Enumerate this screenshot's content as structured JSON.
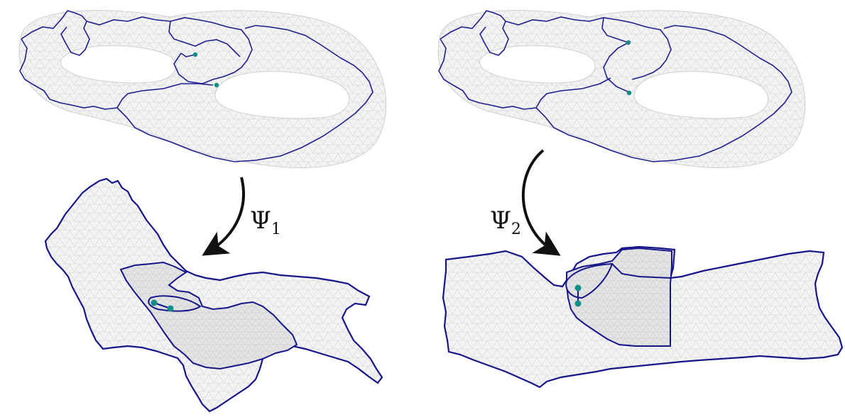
{
  "figure": {
    "maps": [
      {
        "symbol": "Ψ",
        "subscript": "1"
      },
      {
        "symbol": "Ψ",
        "subscript": "2"
      }
    ],
    "colors": {
      "cut_path": "#1f1f8f",
      "boundary": "#16168a",
      "marker": "#138f8a",
      "mesh_fill": "#f1f1f1",
      "mesh_line": "#d3d3d3",
      "arrow": "#111111"
    }
  }
}
